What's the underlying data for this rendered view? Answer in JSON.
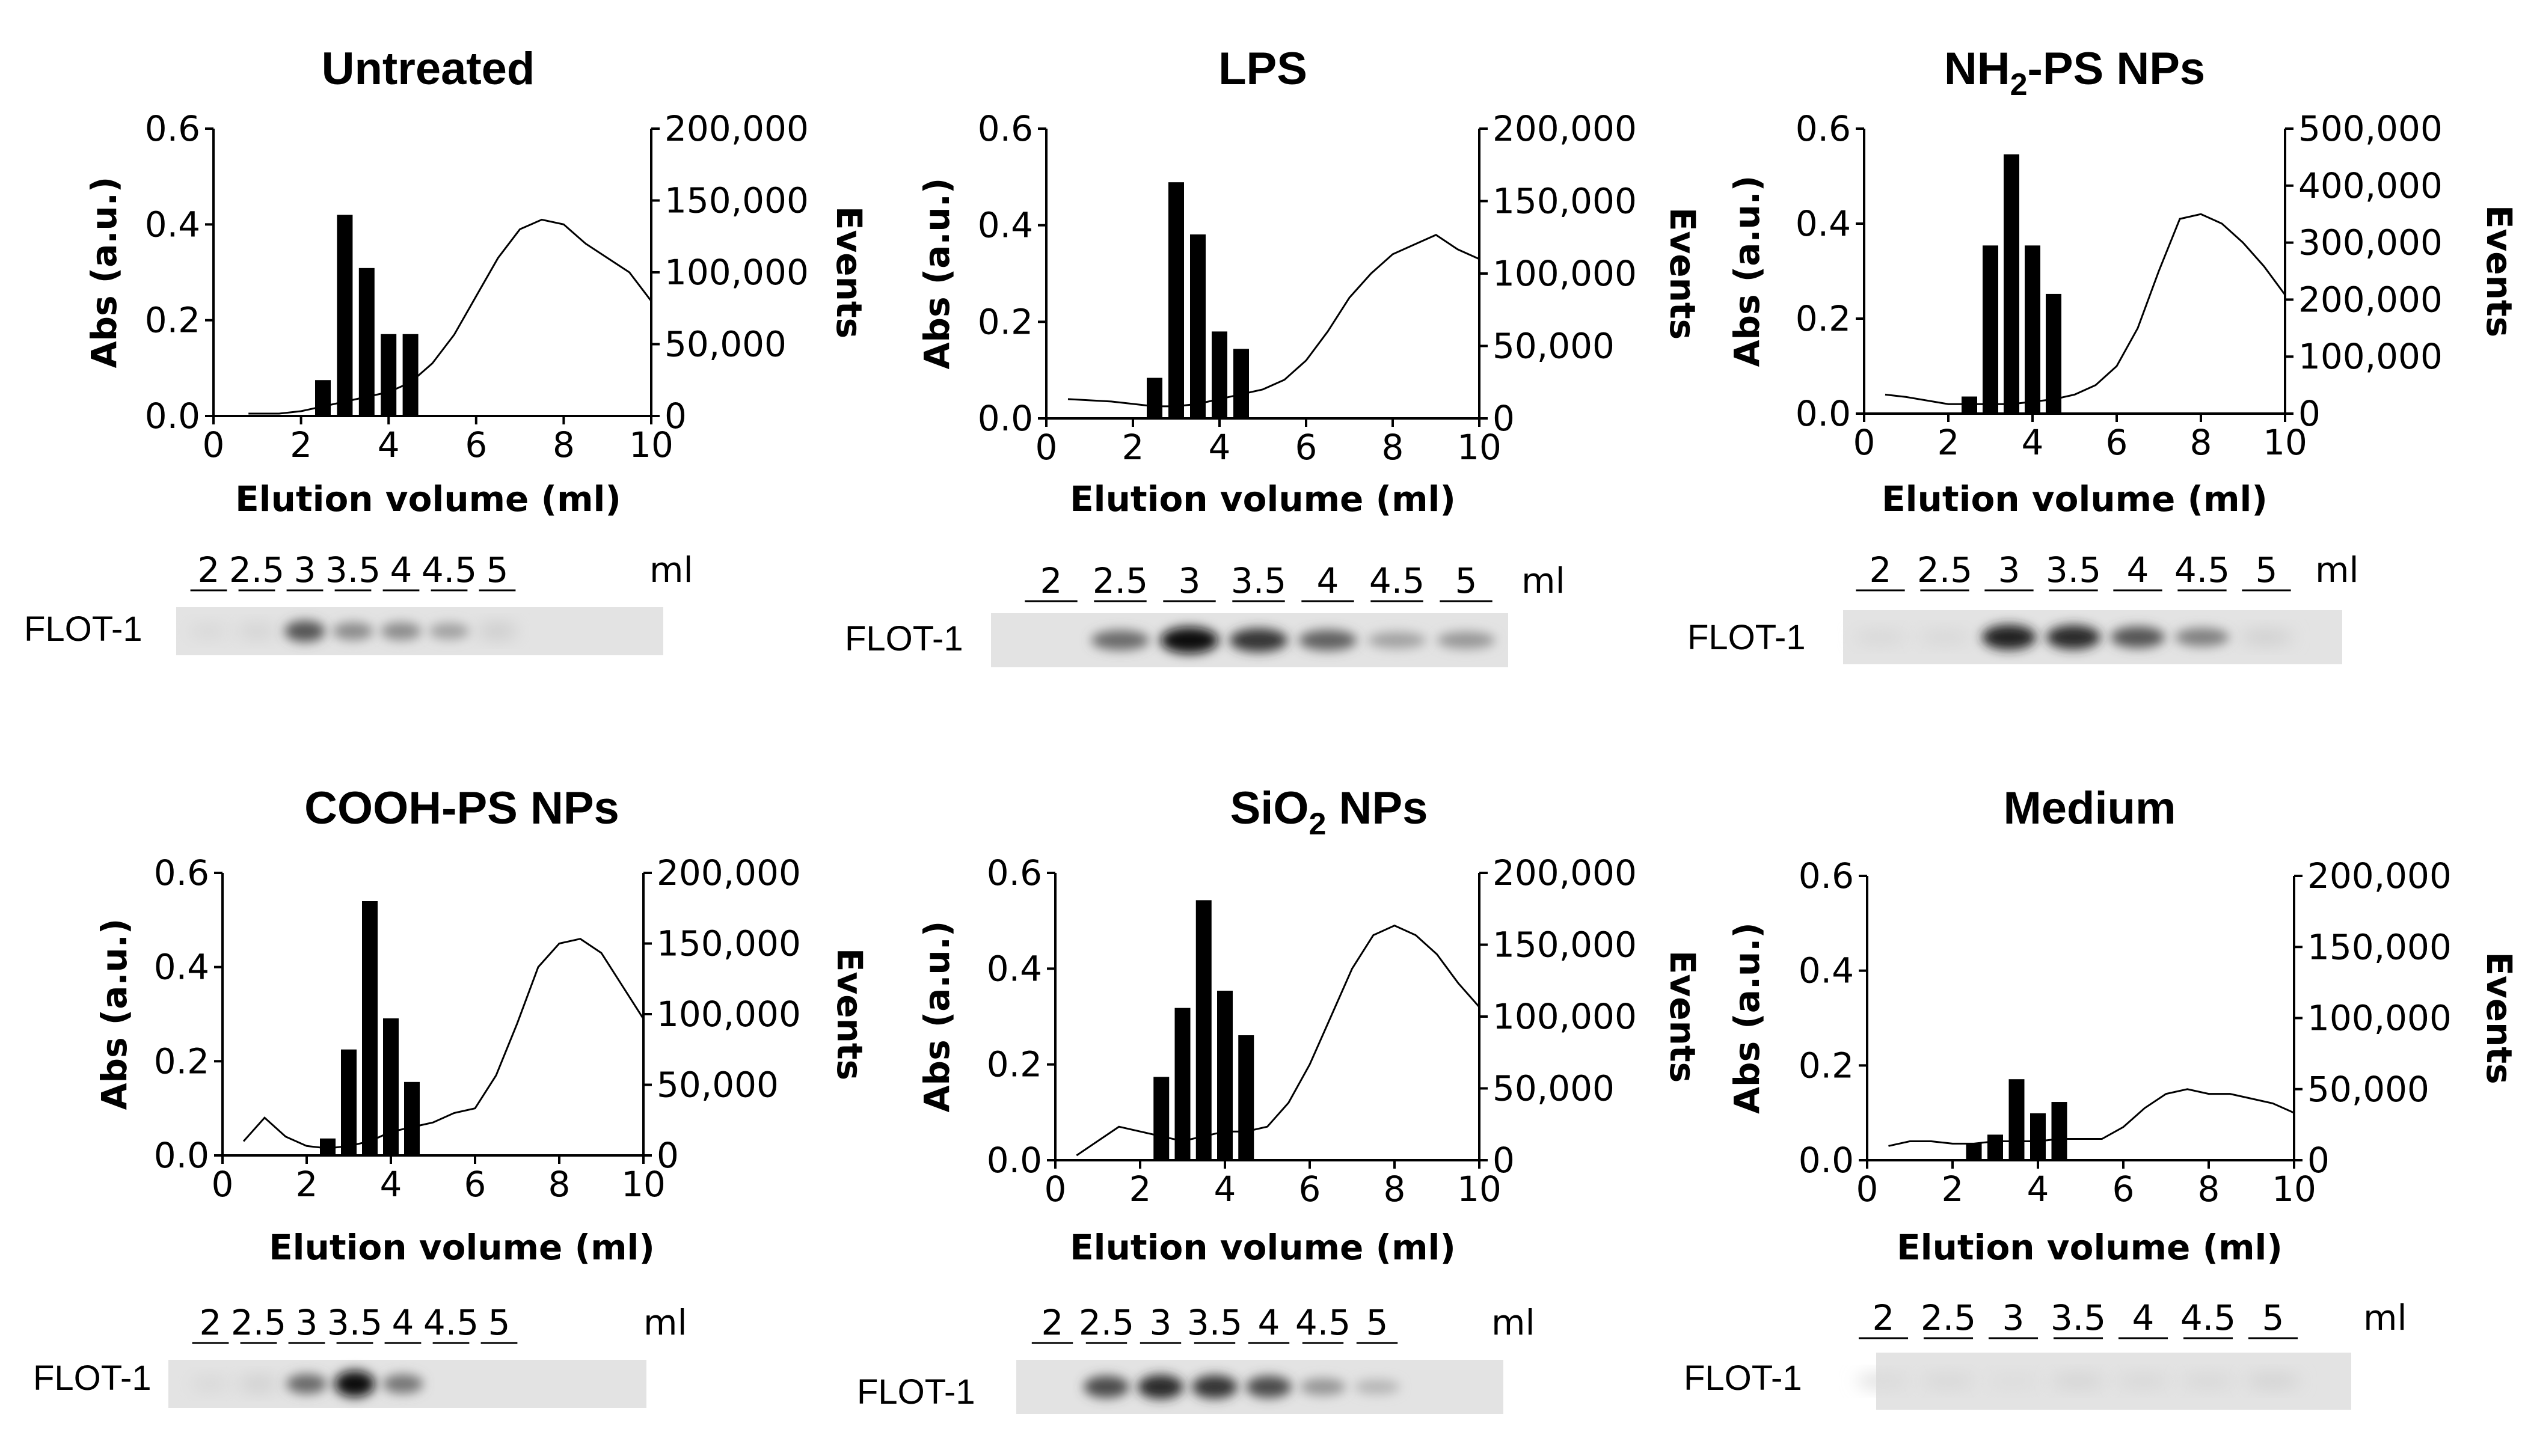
{
  "chart_data": [
    {
      "type": "bar+line",
      "title": "Untreated",
      "title_sub": "",
      "xlabel": "Elution volume (ml)",
      "ylabel_left": "Abs (a.u.)",
      "ylabel_right": "Events",
      "xlim": [
        0,
        10
      ],
      "x_ticks": [
        "0",
        "2",
        "4",
        "6",
        "8",
        "10"
      ],
      "ylim_left": [
        0,
        0.6
      ],
      "left_ticks": [
        "0.0",
        "0.2",
        "0.4",
        "0.6"
      ],
      "ylim_right": [
        0,
        200000
      ],
      "right_ticks": [
        "0",
        "50,000",
        "100,000",
        "150,000",
        "200,000"
      ],
      "bars": {
        "series": "Events",
        "x": [
          2.5,
          3,
          3.5,
          4,
          4.5
        ],
        "values": [
          25000,
          140000,
          103000,
          57000,
          57000
        ]
      },
      "line": {
        "series": "Abs (a.u.)",
        "x": [
          0.8,
          1.5,
          2,
          2.5,
          3,
          3.5,
          4,
          4.5,
          5,
          5.5,
          6,
          6.5,
          7,
          7.5,
          8,
          8.5,
          9,
          9.5,
          10
        ],
        "y": [
          0.005,
          0.005,
          0.01,
          0.02,
          0.03,
          0.04,
          0.05,
          0.07,
          0.11,
          0.17,
          0.25,
          0.33,
          0.39,
          0.41,
          0.4,
          0.36,
          0.33,
          0.3,
          0.24
        ]
      },
      "blot": {
        "label": "FLOT-1",
        "unit": "ml",
        "lanes": [
          "2",
          "2.5",
          "3",
          "3.5",
          "4",
          "4.5",
          "5"
        ],
        "intensity": [
          0.05,
          0.08,
          0.65,
          0.4,
          0.4,
          0.3,
          0.12
        ]
      }
    },
    {
      "type": "bar+line",
      "title": "LPS",
      "title_sub": "",
      "xlabel": "Elution volume (ml)",
      "ylabel_left": "Abs (a.u.)",
      "ylabel_right": "Events",
      "xlim": [
        0,
        10
      ],
      "x_ticks": [
        "0",
        "2",
        "4",
        "6",
        "8",
        "10"
      ],
      "ylim_left": [
        0,
        0.6
      ],
      "left_ticks": [
        "0.0",
        "0.2",
        "0.4",
        "0.6"
      ],
      "ylim_right": [
        0,
        200000
      ],
      "right_ticks": [
        "0",
        "50,000",
        "100,000",
        "150,000",
        "200,000"
      ],
      "bars": {
        "series": "Events",
        "x": [
          2.5,
          3,
          3.5,
          4,
          4.5
        ],
        "values": [
          28000,
          163000,
          127000,
          60000,
          48000
        ]
      },
      "line": {
        "series": "Abs (a.u.)",
        "x": [
          0.5,
          1.5,
          2,
          2.5,
          3,
          3.5,
          4,
          4.5,
          5,
          5.5,
          6,
          6.5,
          7,
          7.5,
          8,
          8.5,
          9,
          9.5,
          10
        ],
        "y": [
          0.04,
          0.035,
          0.03,
          0.025,
          0.025,
          0.03,
          0.04,
          0.05,
          0.06,
          0.08,
          0.12,
          0.18,
          0.25,
          0.3,
          0.34,
          0.36,
          0.38,
          0.35,
          0.33
        ]
      },
      "blot": {
        "label": "FLOT-1",
        "unit": "ml",
        "lanes": [
          "2",
          "2.5",
          "3",
          "3.5",
          "4",
          "4.5",
          "5"
        ],
        "intensity": [
          0.0,
          0.55,
          1.0,
          0.8,
          0.6,
          0.3,
          0.35
        ]
      }
    },
    {
      "type": "bar+line",
      "title": "NH",
      "title_sub": "2",
      "title_rest": "-PS NPs",
      "xlabel": "Elution volume (ml)",
      "ylabel_left": "Abs (a.u.)",
      "ylabel_right": "Events",
      "xlim": [
        0,
        10
      ],
      "x_ticks": [
        "0",
        "2",
        "4",
        "6",
        "8",
        "10"
      ],
      "ylim_left": [
        0,
        0.6
      ],
      "left_ticks": [
        "0.0",
        "0.2",
        "0.4",
        "0.6"
      ],
      "ylim_right": [
        0,
        500000
      ],
      "right_ticks": [
        "0",
        "100,000",
        "200,000",
        "300,000",
        "400,000",
        "500,000"
      ],
      "bars": {
        "series": "Events",
        "x": [
          2.5,
          3,
          3.5,
          4,
          4.5
        ],
        "values": [
          30000,
          295000,
          455000,
          295000,
          210000
        ]
      },
      "line": {
        "series": "Abs (a.u.)",
        "x": [
          0.5,
          1,
          2,
          2.5,
          3,
          3.5,
          4,
          4.5,
          5,
          5.5,
          6,
          6.5,
          7,
          7.5,
          8,
          8.5,
          9,
          9.5,
          10
        ],
        "y": [
          0.04,
          0.035,
          0.02,
          0.02,
          0.02,
          0.02,
          0.025,
          0.03,
          0.04,
          0.06,
          0.1,
          0.18,
          0.3,
          0.41,
          0.42,
          0.4,
          0.36,
          0.31,
          0.25
        ]
      },
      "blot": {
        "label": "FLOT-1",
        "unit": "ml",
        "lanes": [
          "2",
          "2.5",
          "3",
          "3.5",
          "4",
          "4.5",
          "5"
        ],
        "intensity": [
          0.05,
          0.05,
          0.9,
          0.85,
          0.65,
          0.45,
          0.1
        ]
      }
    },
    {
      "type": "bar+line",
      "title": "COOH-PS NPs",
      "title_sub": "",
      "xlabel": "Elution volume (ml)",
      "ylabel_left": "Abs (a.u.)",
      "ylabel_right": "Events",
      "xlim": [
        0,
        10
      ],
      "x_ticks": [
        "0",
        "2",
        "4",
        "6",
        "8",
        "10"
      ],
      "ylim_left": [
        0,
        0.6
      ],
      "left_ticks": [
        "0.0",
        "0.2",
        "0.4",
        "0.6"
      ],
      "ylim_right": [
        0,
        200000
      ],
      "right_ticks": [
        "0",
        "50,000",
        "100,000",
        "150,000",
        "200,000"
      ],
      "bars": {
        "series": "Events",
        "x": [
          2.5,
          3,
          3.5,
          4,
          4.5
        ],
        "values": [
          12000,
          75000,
          180000,
          97000,
          52000
        ]
      },
      "line": {
        "series": "Abs (a.u.)",
        "x": [
          0.5,
          1,
          1.5,
          2,
          2.5,
          3,
          3.5,
          4,
          4.5,
          5,
          5.5,
          6,
          6.5,
          7,
          7.5,
          8,
          8.5,
          9,
          9.5,
          10
        ],
        "y": [
          0.03,
          0.08,
          0.04,
          0.02,
          0.015,
          0.02,
          0.03,
          0.05,
          0.06,
          0.07,
          0.09,
          0.1,
          0.17,
          0.28,
          0.4,
          0.45,
          0.46,
          0.43,
          0.36,
          0.29
        ]
      },
      "blot": {
        "label": "FLOT-1",
        "unit": "ml",
        "lanes": [
          "2",
          "2.5",
          "3",
          "3.5",
          "4",
          "4.5",
          "5"
        ],
        "intensity": [
          0.05,
          0.1,
          0.55,
          1.0,
          0.5,
          0.0,
          0.0
        ]
      }
    },
    {
      "type": "bar+line",
      "title": "SiO",
      "title_sub": "2",
      "title_rest": " NPs",
      "xlabel": "Elution volume (ml)",
      "ylabel_left": "Abs (a.u.)",
      "ylabel_right": "Events",
      "xlim": [
        0,
        10
      ],
      "x_ticks": [
        "0",
        "2",
        "4",
        "6",
        "8",
        "10"
      ],
      "ylim_left": [
        0,
        0.6
      ],
      "left_ticks": [
        "0.0",
        "0.2",
        "0.4",
        "0.6"
      ],
      "ylim_right": [
        0,
        200000
      ],
      "right_ticks": [
        "0",
        "50,000",
        "100,000",
        "150,000",
        "200,000"
      ],
      "bars": {
        "series": "Events",
        "x": [
          2.5,
          3,
          3.5,
          4,
          4.5
        ],
        "values": [
          58000,
          106000,
          181000,
          118000,
          87000
        ]
      },
      "line": {
        "series": "Abs (a.u.)",
        "x": [
          0.5,
          1,
          1.5,
          2,
          2.5,
          3,
          3.5,
          4,
          4.5,
          5,
          5.5,
          6,
          6.5,
          7,
          7.5,
          8,
          8.5,
          9,
          9.5,
          10
        ],
        "y": [
          0.01,
          0.04,
          0.07,
          0.06,
          0.05,
          0.04,
          0.05,
          0.06,
          0.06,
          0.07,
          0.12,
          0.2,
          0.3,
          0.4,
          0.47,
          0.49,
          0.47,
          0.43,
          0.37,
          0.32
        ]
      },
      "blot": {
        "label": "FLOT-1",
        "unit": "ml",
        "lanes": [
          "2",
          "2.5",
          "3",
          "3.5",
          "4",
          "4.5",
          "5"
        ],
        "intensity": [
          0.0,
          0.7,
          0.85,
          0.8,
          0.7,
          0.35,
          0.2
        ]
      }
    },
    {
      "type": "bar+line",
      "title": "Medium",
      "title_sub": "",
      "xlabel": "Elution volume (ml)",
      "ylabel_left": "Abs (a.u.)",
      "ylabel_right": "Events",
      "xlim": [
        0,
        10
      ],
      "x_ticks": [
        "0",
        "2",
        "4",
        "6",
        "8",
        "10"
      ],
      "ylim_left": [
        0,
        0.6
      ],
      "left_ticks": [
        "0.0",
        "0.2",
        "0.4",
        "0.6"
      ],
      "ylim_right": [
        0,
        200000
      ],
      "right_ticks": [
        "0",
        "50,000",
        "100,000",
        "150,000",
        "200,000"
      ],
      "bars": {
        "series": "Events",
        "x": [
          2.5,
          3,
          3.5,
          4,
          4.5
        ],
        "values": [
          12000,
          18000,
          57000,
          33000,
          41000
        ]
      },
      "line": {
        "series": "Abs (a.u.)",
        "x": [
          0.5,
          1,
          1.5,
          2,
          2.5,
          3,
          3.5,
          4,
          4.5,
          5,
          5.5,
          6,
          6.5,
          7,
          7.5,
          8,
          8.5,
          9,
          9.5,
          10
        ],
        "y": [
          0.03,
          0.04,
          0.04,
          0.035,
          0.035,
          0.04,
          0.04,
          0.04,
          0.045,
          0.045,
          0.045,
          0.07,
          0.11,
          0.14,
          0.15,
          0.14,
          0.14,
          0.13,
          0.12,
          0.1
        ]
      },
      "blot": {
        "label": "FLOT-1",
        "unit": "ml",
        "lanes": [
          "2",
          "2.5",
          "3",
          "3.5",
          "4",
          "4.5",
          "5"
        ],
        "intensity": [
          0.04,
          0.05,
          0.03,
          0.07,
          0.05,
          0.05,
          0.08
        ]
      }
    }
  ]
}
